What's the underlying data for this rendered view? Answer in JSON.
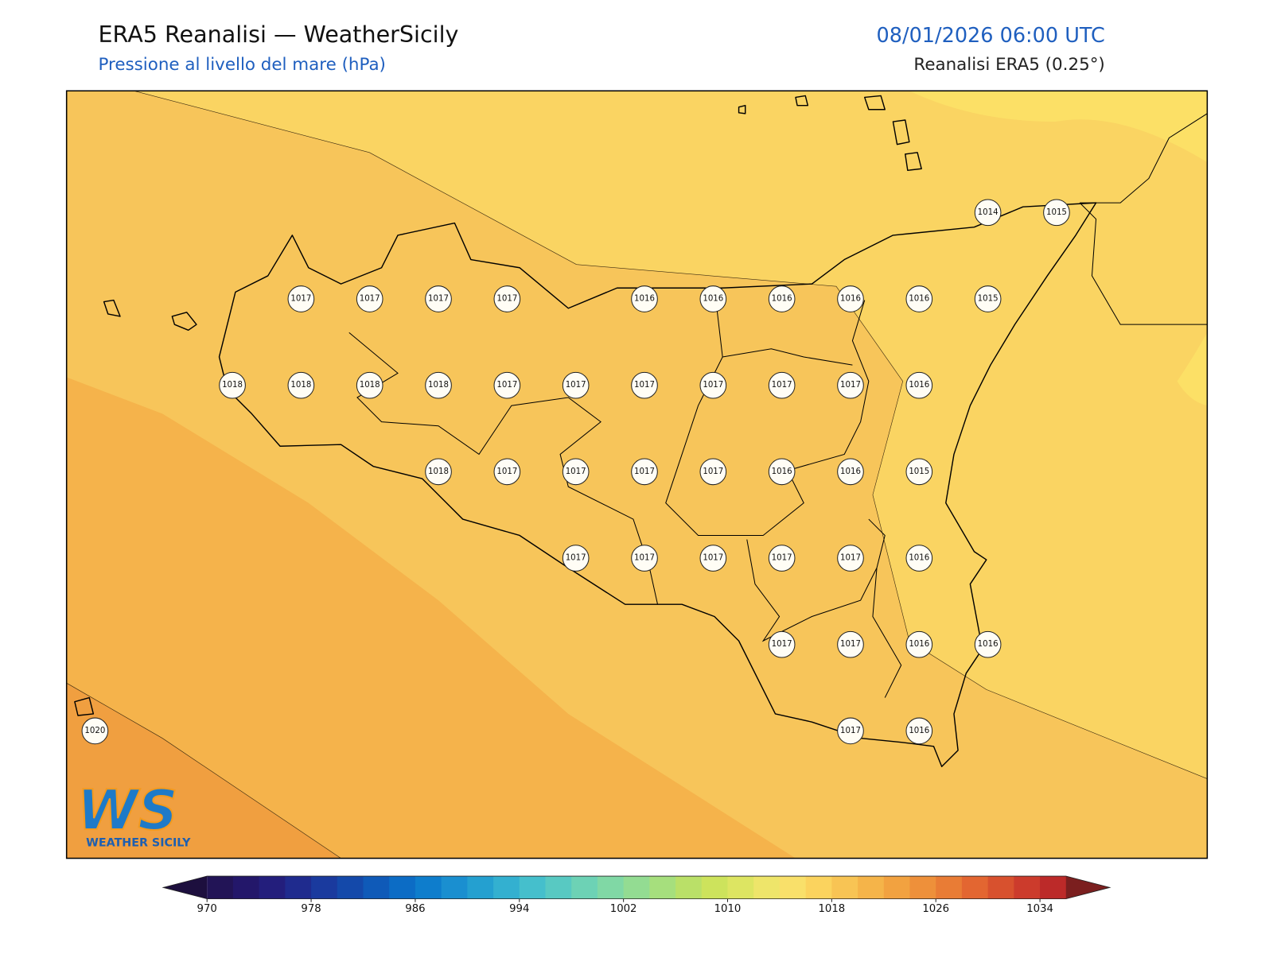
{
  "header": {
    "title": "ERA5 Reanalisi — WeatherSicily",
    "subtitle": "Pressione al livello del mare (hPa)",
    "datetime": "08/01/2026 06:00 UTC",
    "source": "Reanalisi ERA5 (0.25°)"
  },
  "stations": {
    "rows": [
      [
        null,
        null,
        null,
        null,
        null,
        null,
        null,
        null,
        null,
        null,
        null,
        null,
        null,
        1014,
        1015
      ],
      [
        null,
        null,
        null,
        1017,
        1017,
        1017,
        1017,
        null,
        1016,
        1016,
        1016,
        1016,
        1016,
        1015,
        null
      ],
      [
        null,
        null,
        1018,
        1018,
        1018,
        1018,
        1017,
        1017,
        1017,
        1017,
        1017,
        1017,
        1016,
        null,
        null
      ],
      [
        null,
        null,
        null,
        null,
        null,
        1018,
        1017,
        1017,
        1017,
        1017,
        1016,
        1016,
        1015,
        null,
        null
      ],
      [
        null,
        null,
        null,
        null,
        null,
        null,
        null,
        1017,
        1017,
        1017,
        1017,
        1017,
        1016,
        null,
        null
      ],
      [
        null,
        null,
        null,
        null,
        null,
        null,
        null,
        null,
        null,
        null,
        1017,
        1017,
        1016,
        1016,
        null
      ],
      [
        1020,
        null,
        null,
        null,
        null,
        null,
        null,
        null,
        null,
        null,
        null,
        1017,
        1016,
        null,
        null
      ]
    ]
  },
  "colorbar": {
    "range": [
      970,
      1036
    ],
    "ticks": [
      970,
      978,
      986,
      994,
      1002,
      1010,
      1018,
      1026,
      1034
    ],
    "colors": [
      "#221456",
      "#23176a",
      "#231e7c",
      "#1f2b8e",
      "#1a3a9e",
      "#1449aa",
      "#0f5ab8",
      "#0c6cc5",
      "#0e7dcc",
      "#1a8fd0",
      "#24a0d0",
      "#33b0d0",
      "#45bfcc",
      "#58c9c2",
      "#6dd2b5",
      "#80d8a5",
      "#93dc92",
      "#a6df7d",
      "#bae068",
      "#cde35c",
      "#dde562",
      "#eee56a",
      "#f9e06a",
      "#fbd35e",
      "#f8c454",
      "#f5b449",
      "#f2a240",
      "#ee903a",
      "#e97c35",
      "#e36631",
      "#d8512e",
      "#cc3b2c",
      "#bc2a29"
    ],
    "under_color": "#1d0f3e",
    "over_color": "#7b1f1f"
  },
  "logo": {
    "mark": "WS",
    "text": "WEATHER SICILY"
  }
}
